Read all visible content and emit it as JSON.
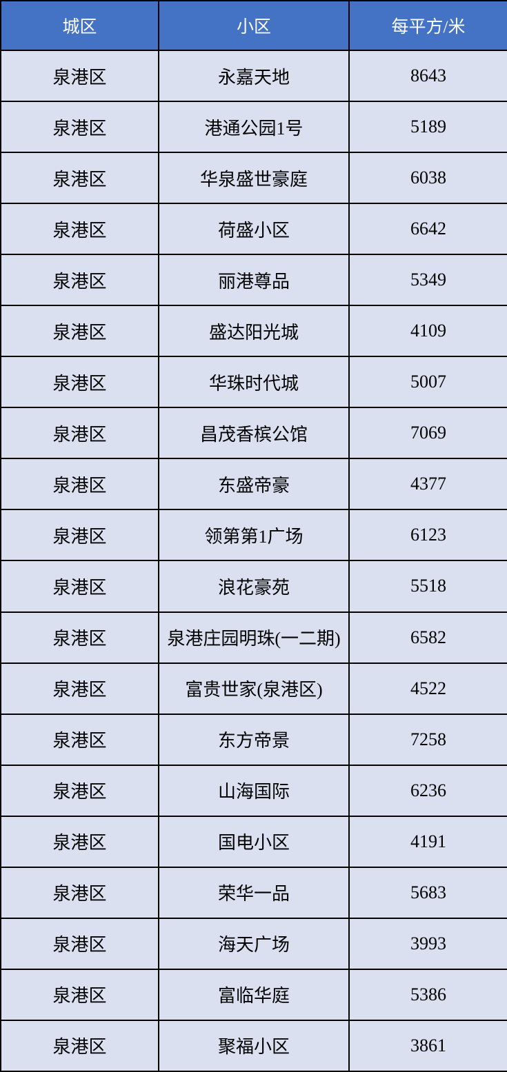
{
  "colors": {
    "header_bg": "#4472C4",
    "header_text": "#FFFFFF",
    "row_bg": "#DAE0F0",
    "cell_text": "#000000",
    "border": "#000000"
  },
  "chart_data": {
    "type": "table",
    "columns": [
      "城区",
      "小区",
      "每平方/米"
    ],
    "rows": [
      [
        "泉港区",
        "永嘉天地",
        "8643"
      ],
      [
        "泉港区",
        "港通公园1号",
        "5189"
      ],
      [
        "泉港区",
        "华泉盛世豪庭",
        "6038"
      ],
      [
        "泉港区",
        "荷盛小区",
        "6642"
      ],
      [
        "泉港区",
        "丽港尊品",
        "5349"
      ],
      [
        "泉港区",
        "盛达阳光城",
        "4109"
      ],
      [
        "泉港区",
        "华珠时代城",
        "5007"
      ],
      [
        "泉港区",
        "昌茂香槟公馆",
        "7069"
      ],
      [
        "泉港区",
        "东盛帝豪",
        "4377"
      ],
      [
        "泉港区",
        "领第第1广场",
        "6123"
      ],
      [
        "泉港区",
        "浪花豪苑",
        "5518"
      ],
      [
        "泉港区",
        "泉港庄园明珠(一二期)",
        "6582"
      ],
      [
        "泉港区",
        "富贵世家(泉港区)",
        "4522"
      ],
      [
        "泉港区",
        "东方帝景",
        "7258"
      ],
      [
        "泉港区",
        "山海国际",
        "6236"
      ],
      [
        "泉港区",
        "国电小区",
        "4191"
      ],
      [
        "泉港区",
        "荣华一品",
        "5683"
      ],
      [
        "泉港区",
        "海天广场",
        "3993"
      ],
      [
        "泉港区",
        "富临华庭",
        "5386"
      ],
      [
        "泉港区",
        "聚福小区",
        "3861"
      ]
    ]
  }
}
